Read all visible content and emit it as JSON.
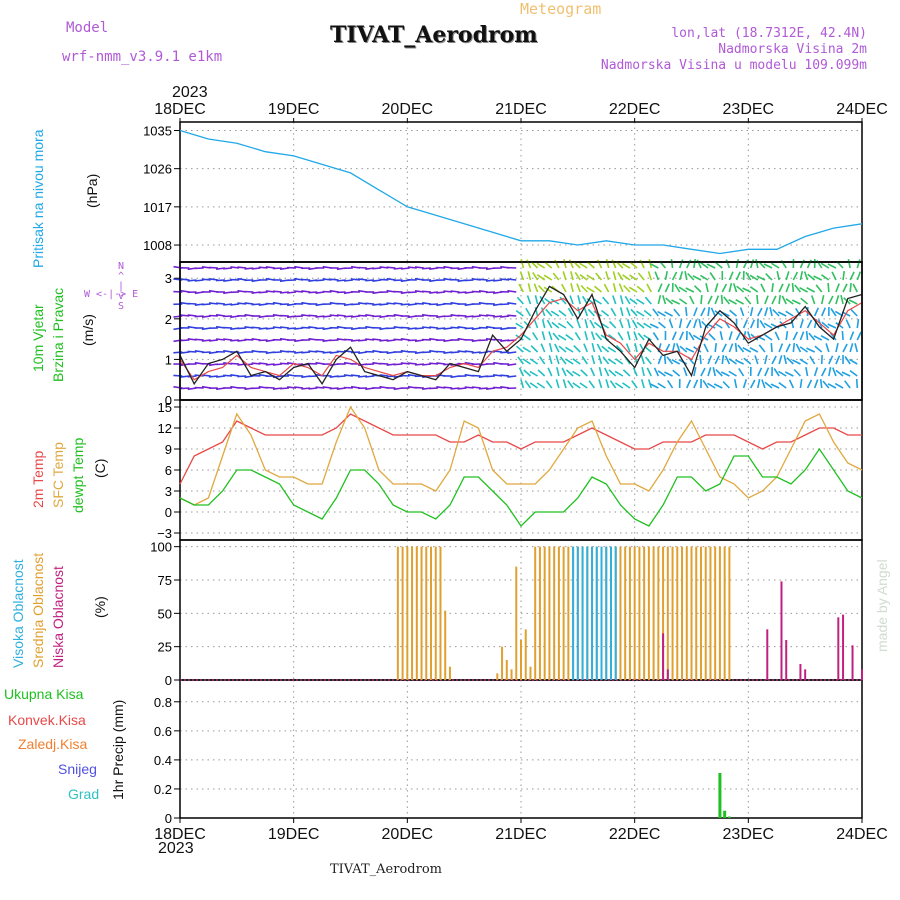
{
  "header": {
    "model_label": "Model",
    "model_name": "wrf-nmm_v3.9.1 e1km",
    "meteogram_label": "Meteogram",
    "station_title": "TIVAT_Aerodrom",
    "lonlat": "lon,lat (18.7312E, 42.4N)",
    "elevation": "Nadmorska Visina 2m",
    "model_elevation": "Nadmorska Visina u modelu 109.099m"
  },
  "footer": {
    "station_title": "TIVAT_Aerodrom",
    "watermark": "made by Angel"
  },
  "time_axis": {
    "year": "2023",
    "ticks": [
      "18DEC",
      "19DEC",
      "20DEC",
      "21DEC",
      "22DEC",
      "23DEC",
      "24DEC"
    ]
  },
  "panels": {
    "pressure": {
      "label": "Pritisak na nivou mora",
      "unit": "(hPa)"
    },
    "wind": {
      "label_line1": "10m Vjetar",
      "label_line2": "Brzina i Pravac",
      "unit": "(m/s)",
      "compass": "W <-|-> E"
    },
    "temp": {
      "label_red": "2m Temp",
      "label_orange": "SFC Temp",
      "label_green": "dewpt Temp",
      "unit": "(C)"
    },
    "cloud": {
      "label_high": "Visoka Oblacnost",
      "label_mid": "Srednja Oblacnost",
      "label_low": "Niska Oblacnost",
      "unit": "(%)"
    },
    "precip": {
      "legend": [
        "Ukupna Kisa",
        "Konvek.Kisa",
        "Zaledj.Kisa",
        "Snijeg",
        "Grad"
      ],
      "unit": "1hr Precip (mm)"
    }
  },
  "colors": {
    "pressure": "#20a8e8",
    "t2m": "#e84848",
    "tsfc": "#e0a840",
    "dewpt": "#20c020",
    "cloud_high": "#30b0e0",
    "cloud_mid": "#e0a030",
    "cloud_low": "#c02080",
    "total_rain": "#20c020",
    "conv_rain": "#e84848",
    "frz_rain": "#f08030",
    "snow": "#5050e0",
    "hail": "#30c0c0",
    "wind_speed": "#222222",
    "wind_gust": "#e84848"
  },
  "chart_data": [
    {
      "type": "line",
      "title": "Pritisak na nivou mora",
      "x": [
        0,
        6,
        12,
        18,
        24,
        30,
        36,
        42,
        48,
        54,
        60,
        66,
        72,
        78,
        84,
        90,
        96,
        102,
        108,
        114,
        120,
        126,
        132,
        138,
        144
      ],
      "series": [
        {
          "name": "Pritisak na nivou mora",
          "values": [
            1035,
            1033,
            1032,
            1030,
            1029,
            1027,
            1025,
            1021,
            1017,
            1015,
            1013,
            1011,
            1009,
            1009,
            1008,
            1009,
            1008,
            1008,
            1007,
            1006,
            1007,
            1007,
            1010,
            1012,
            1013
          ]
        }
      ],
      "ylim": [
        1004,
        1037
      ],
      "yticks": [
        1008,
        1017,
        1026,
        1035
      ]
    },
    {
      "type": "line",
      "title": "10m Vjetar Brzina i Pravac",
      "x": [
        0,
        3,
        6,
        9,
        12,
        15,
        18,
        21,
        24,
        27,
        30,
        33,
        36,
        39,
        42,
        45,
        48,
        51,
        54,
        57,
        60,
        63,
        66,
        69,
        72,
        75,
        78,
        81,
        84,
        87,
        90,
        93,
        96,
        99,
        102,
        105,
        108,
        111,
        114,
        117,
        120,
        123,
        126,
        129,
        132,
        135,
        138,
        141,
        144
      ],
      "series": [
        {
          "name": "speed",
          "values": [
            1.1,
            0.4,
            0.9,
            1.0,
            1.2,
            0.6,
            0.7,
            0.5,
            0.8,
            0.9,
            0.4,
            1.0,
            1.3,
            0.7,
            0.6,
            0.5,
            0.7,
            0.6,
            0.5,
            0.9,
            0.8,
            0.7,
            1.6,
            1.2,
            1.5,
            2.2,
            2.8,
            2.6,
            2.0,
            2.6,
            1.5,
            1.2,
            0.8,
            1.5,
            1.1,
            1.2,
            0.6,
            1.8,
            2.2,
            1.9,
            1.4,
            1.6,
            1.8,
            1.9,
            2.3,
            1.8,
            1.5,
            2.5,
            2.6
          ]
        },
        {
          "name": "gust",
          "values": [
            1.0,
            0.5,
            0.7,
            0.8,
            1.1,
            0.8,
            0.7,
            0.6,
            0.9,
            0.8,
            0.6,
            1.1,
            1.0,
            0.8,
            0.7,
            0.6,
            0.7,
            0.6,
            0.6,
            0.8,
            0.9,
            0.8,
            1.2,
            1.3,
            1.6,
            2.0,
            2.4,
            2.5,
            2.2,
            2.4,
            1.6,
            1.4,
            1.0,
            1.4,
            1.2,
            1.2,
            1.0,
            1.6,
            2.0,
            1.8,
            1.5,
            1.6,
            1.8,
            2.0,
            2.2,
            1.9,
            1.6,
            2.2,
            2.4
          ]
        }
      ],
      "ylim": [
        0,
        3.4
      ],
      "yticks": [
        0,
        1,
        2,
        3
      ]
    },
    {
      "type": "line",
      "title": "Temperatures",
      "x": [
        0,
        3,
        6,
        9,
        12,
        15,
        18,
        21,
        24,
        27,
        30,
        33,
        36,
        39,
        42,
        45,
        48,
        51,
        54,
        57,
        60,
        63,
        66,
        69,
        72,
        75,
        78,
        81,
        84,
        87,
        90,
        93,
        96,
        99,
        102,
        105,
        108,
        111,
        114,
        117,
        120,
        123,
        126,
        129,
        132,
        135,
        138,
        141,
        144
      ],
      "series": [
        {
          "name": "2m Temp",
          "values": [
            4,
            8,
            9,
            10,
            13,
            12,
            11,
            11,
            11,
            11,
            11,
            12,
            14,
            13,
            12,
            11,
            11,
            11,
            11,
            10,
            10,
            11,
            10,
            10,
            9,
            10,
            10,
            10,
            11,
            12,
            11,
            10,
            9,
            9,
            10,
            10,
            10,
            11,
            11,
            11,
            10,
            9,
            10,
            10,
            11,
            12,
            12,
            11,
            11
          ]
        },
        {
          "name": "SFC Temp",
          "values": [
            2,
            1,
            2,
            8,
            14,
            11,
            6,
            5,
            5,
            4,
            4,
            10,
            15,
            12,
            6,
            4,
            4,
            4,
            3,
            6,
            13,
            12,
            6,
            4,
            4,
            4,
            6,
            9,
            12,
            13,
            8,
            4,
            4,
            3,
            6,
            10,
            13,
            9,
            5,
            4,
            2,
            3,
            5,
            9,
            13,
            14,
            10,
            7,
            6
          ]
        },
        {
          "name": "dewpt Temp",
          "values": [
            2,
            1,
            1,
            3,
            6,
            6,
            5,
            4,
            1,
            0,
            -1,
            2,
            6,
            6,
            4,
            1,
            0,
            0,
            -1,
            1,
            5,
            5,
            3,
            1,
            -2,
            0,
            0,
            0,
            2,
            5,
            4,
            1,
            -1,
            -2,
            1,
            5,
            5,
            3,
            4,
            8,
            8,
            5,
            5,
            4,
            6,
            9,
            6,
            3,
            2
          ]
        }
      ],
      "ylim": [
        -4,
        16
      ],
      "yticks": [
        -3,
        0,
        3,
        6,
        9,
        12,
        15
      ]
    },
    {
      "type": "bar",
      "title": "Oblacnost",
      "series": [
        {
          "name": "Srednja Oblacnost",
          "x": [
            46,
            47,
            48,
            49,
            50,
            51,
            52,
            53,
            54,
            55,
            56,
            57,
            67,
            68,
            69,
            70,
            71,
            72,
            73,
            74,
            75,
            76,
            77,
            78,
            79,
            80,
            81,
            82,
            83,
            84,
            85,
            86,
            87,
            88,
            89,
            90,
            91,
            92,
            93,
            94,
            95,
            96,
            97,
            98,
            99,
            100,
            101,
            102,
            103,
            104,
            105,
            106,
            107,
            108,
            109,
            110,
            111,
            112,
            113,
            114,
            115,
            116
          ],
          "values": [
            100,
            100,
            100,
            100,
            100,
            100,
            100,
            100,
            100,
            100,
            52,
            10,
            5,
            25,
            15,
            8,
            85,
            30,
            38,
            10,
            100,
            100,
            100,
            100,
            100,
            100,
            100,
            100,
            100,
            100,
            100,
            100,
            100,
            100,
            100,
            100,
            100,
            100,
            100,
            100,
            100,
            100,
            100,
            100,
            100,
            100,
            100,
            100,
            100,
            100,
            100,
            100,
            100,
            100,
            100,
            100,
            100,
            100,
            100,
            100,
            100,
            100
          ]
        },
        {
          "name": "Visoka Oblacnost",
          "x": [
            83,
            84,
            85,
            86,
            87,
            88,
            89,
            90,
            91,
            92
          ],
          "values": [
            100,
            100,
            100,
            100,
            100,
            100,
            100,
            100,
            100,
            100
          ]
        },
        {
          "name": "Niska Oblacnost",
          "x": [
            102,
            103,
            104,
            116,
            117,
            118,
            119,
            120,
            121,
            122,
            123,
            124,
            125,
            126,
            127,
            128,
            129,
            130,
            131,
            132,
            133,
            134,
            135,
            136,
            137,
            138,
            139,
            140,
            141,
            142,
            143,
            144
          ],
          "values": [
            35,
            8,
            0,
            0,
            0,
            0,
            0,
            0,
            0,
            0,
            0,
            38,
            0,
            0,
            74,
            30,
            0,
            0,
            12,
            8,
            0,
            0,
            0,
            0,
            0,
            0,
            47,
            49,
            0,
            26,
            0,
            8
          ]
        }
      ],
      "ylim": [
        0,
        105
      ],
      "yticks": [
        0,
        25,
        50,
        75,
        100
      ]
    },
    {
      "type": "bar",
      "title": "1hr Precip",
      "series": [
        {
          "name": "Ukupna Kisa",
          "x": [
            114,
            115,
            116
          ],
          "values": [
            0.31,
            0.05,
            0.01
          ]
        }
      ],
      "ylim": [
        0,
        0.95
      ],
      "yticks": [
        0,
        0.2,
        0.4,
        0.6,
        0.8
      ]
    }
  ]
}
